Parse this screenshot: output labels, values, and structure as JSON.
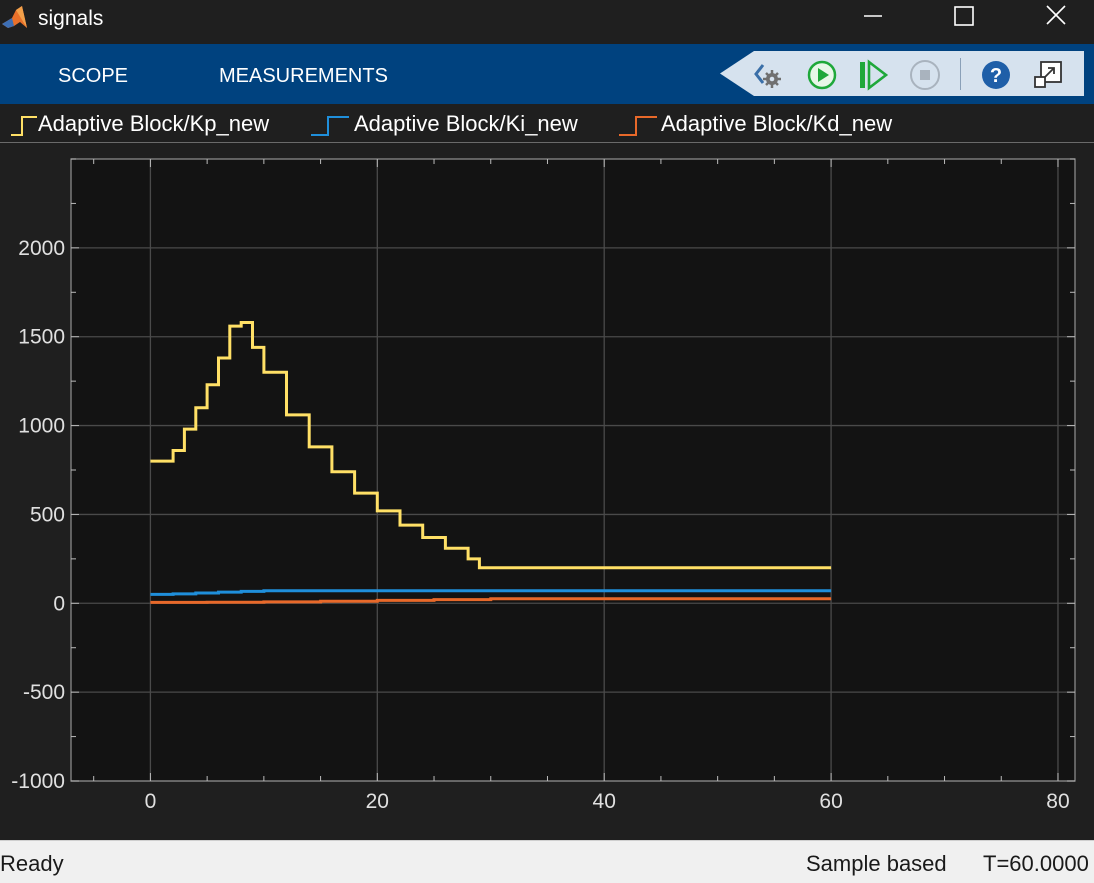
{
  "window": {
    "title": "signals",
    "icons": [
      "matlab-logo-icon",
      "minimize-icon",
      "maximize-icon",
      "close-icon"
    ]
  },
  "toolstrip": {
    "tabs": [
      {
        "label": "SCOPE"
      },
      {
        "label": "MEASUREMENTS"
      }
    ],
    "buttons": [
      "settings-icon",
      "run-icon",
      "step-forward-icon",
      "stop-icon",
      "help-icon",
      "undock-icon"
    ]
  },
  "chart_data": {
    "type": "line",
    "title": "",
    "xlabel": "",
    "ylabel": "",
    "xlim": [
      -7,
      81.5
    ],
    "ylim": [
      -1000,
      2500
    ],
    "xticks": [
      0,
      20,
      40,
      60,
      80
    ],
    "yticks": [
      -1000,
      -500,
      0,
      500,
      1000,
      1500,
      2000
    ],
    "xtick_labels": [
      "0",
      "20",
      "40",
      "60",
      "80"
    ],
    "ytick_labels": [
      "-1000",
      "-500",
      "0",
      "500",
      "1000",
      "1500",
      "2000"
    ],
    "grid": true,
    "legend_position": "top",
    "series": [
      {
        "name": "Adaptive Block/Kp_new",
        "color": "#ffe066",
        "step": true,
        "x": [
          0,
          1,
          2,
          3,
          4,
          5,
          6,
          7,
          8,
          9,
          10,
          12,
          14,
          16,
          18,
          20,
          22,
          24,
          26,
          28,
          29,
          35,
          40,
          50,
          60
        ],
        "y": [
          800,
          800,
          860,
          980,
          1100,
          1230,
          1380,
          1560,
          1580,
          1440,
          1300,
          1060,
          880,
          740,
          620,
          520,
          440,
          370,
          310,
          250,
          200,
          200,
          200,
          200,
          200
        ]
      },
      {
        "name": "Adaptive Block/Ki_new",
        "color": "#1f8fdb",
        "step": true,
        "x": [
          0,
          2,
          4,
          6,
          8,
          10,
          20,
          40,
          60
        ],
        "y": [
          50,
          53,
          58,
          63,
          67,
          70,
          70,
          70,
          70
        ]
      },
      {
        "name": "Adaptive Block/Kd_new",
        "color": "#e8692a",
        "step": true,
        "x": [
          0,
          5,
          10,
          15,
          20,
          25,
          30,
          40,
          60
        ],
        "y": [
          5,
          6,
          8,
          11,
          16,
          21,
          25,
          25,
          25
        ]
      }
    ]
  },
  "status": {
    "left": "Ready",
    "mode": "Sample based",
    "time": "T=60.0000"
  }
}
